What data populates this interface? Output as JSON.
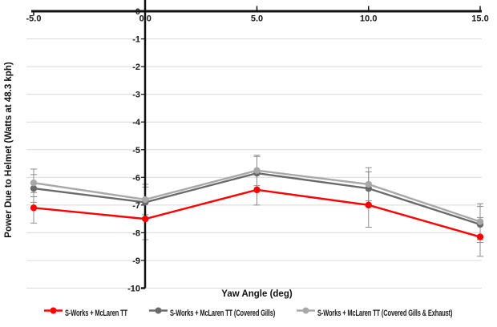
{
  "chart_data": {
    "type": "line",
    "title": "",
    "xlabel": "Yaw Angle (deg)",
    "ylabel": "Power Due to Helmet (Watts at 48.3 kph)",
    "x": [
      -5.0,
      0.0,
      5.0,
      10.0,
      15.0
    ],
    "x_tick_labels": [
      "-5.0",
      "0.0",
      "5.0",
      "10.0",
      "15.0"
    ],
    "xlim": [
      -5,
      15
    ],
    "ylim": [
      -10,
      0
    ],
    "y_ticks": [
      0,
      -1,
      -2,
      -3,
      -4,
      -5,
      -6,
      -7,
      -8,
      -9,
      -10
    ],
    "y_tick_labels": [
      "0",
      "-1",
      "-2",
      "-3",
      "-4",
      "-5",
      "-6",
      "-7",
      "-8",
      "-9",
      "-10"
    ],
    "grid": "horizontal",
    "legend_position": "bottom",
    "series": [
      {
        "name": "S-Works + McLaren TT",
        "color": "#fe0000",
        "values": [
          -7.1,
          -7.5,
          -6.45,
          -7.0,
          -8.15
        ],
        "errors": [
          0.55,
          0.75,
          0.55,
          0.8,
          0.7
        ]
      },
      {
        "name": "S-Works + McLaren TT (Covered Gills)",
        "color": "#6a6a6a",
        "values": [
          -6.4,
          -6.9,
          -5.85,
          -6.4,
          -7.7
        ],
        "errors": [
          0.5,
          0.55,
          0.6,
          0.6,
          0.65
        ]
      },
      {
        "name": "S-Works + McLaren TT (Covered Gills & Exhaust)",
        "color": "#a8a8a8",
        "values": [
          -6.2,
          -6.8,
          -5.75,
          -6.25,
          -7.6
        ],
        "errors": [
          0.5,
          0.55,
          0.55,
          0.6,
          0.65
        ]
      }
    ],
    "colors": {
      "gridline": "#d9d9d9",
      "axis": "#111111",
      "error_bar": "#8c8c8c",
      "tick_label": "#1a1a1a"
    }
  }
}
